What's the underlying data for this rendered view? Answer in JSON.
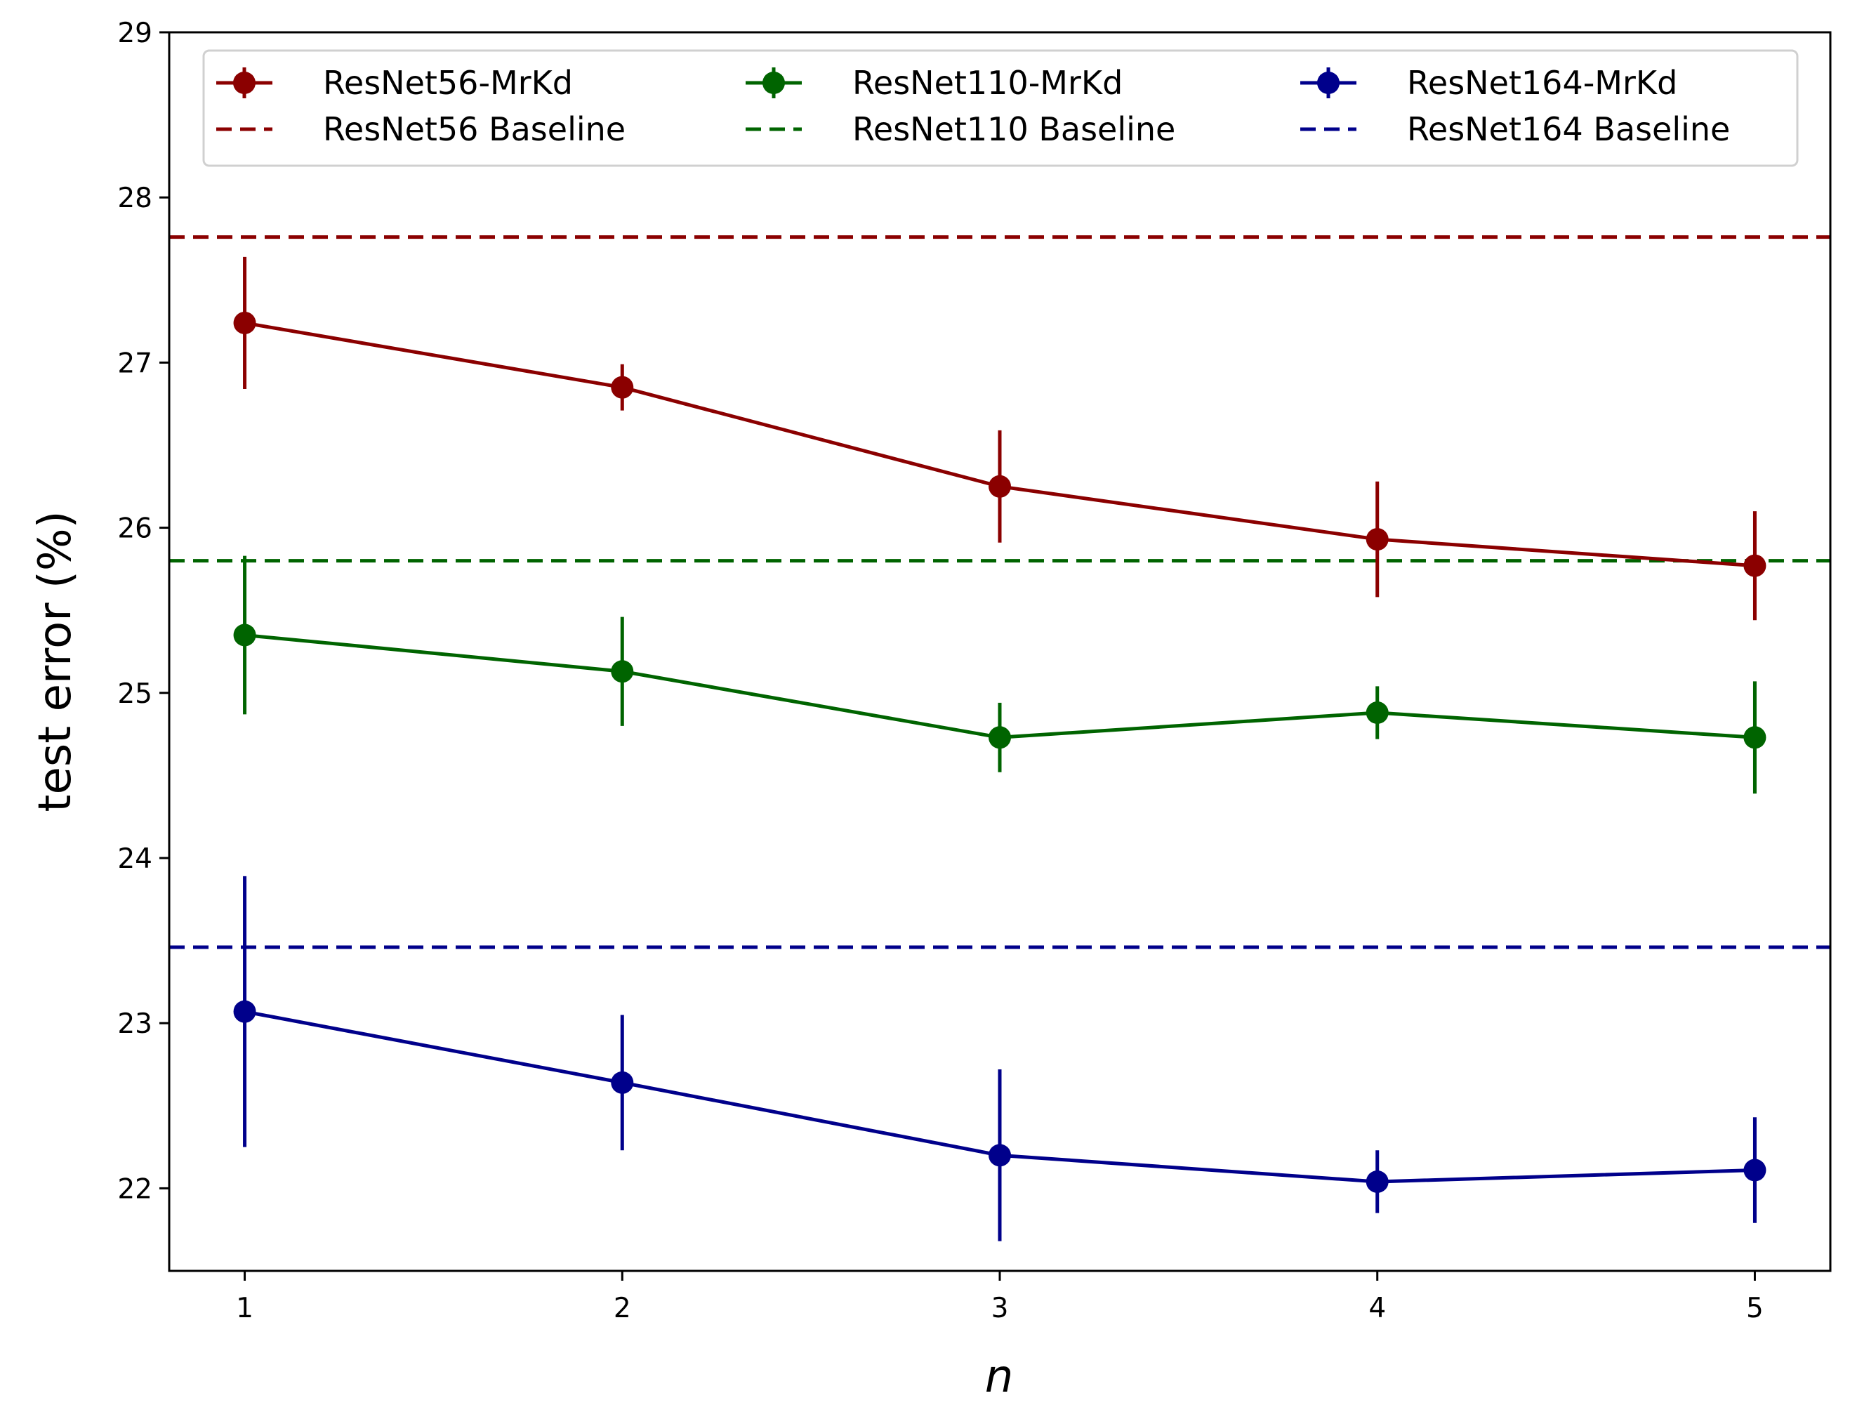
{
  "chart_data": {
    "type": "line",
    "title": "",
    "xlabel": "n",
    "ylabel": "test error (%)",
    "x": [
      1,
      2,
      3,
      4,
      5
    ],
    "xlim": [
      0.8,
      5.2
    ],
    "ylim": [
      21.5,
      29.0
    ],
    "xticks": [
      "1",
      "2",
      "3",
      "4",
      "5"
    ],
    "yticks": [
      "22",
      "23",
      "24",
      "25",
      "26",
      "27",
      "28",
      "29"
    ],
    "grid": false,
    "legend_position": "top",
    "series": [
      {
        "name": "ResNet56-MrKd",
        "color": "#8b0000",
        "values": [
          27.24,
          26.85,
          26.25,
          25.93,
          25.77
        ],
        "errors": [
          0.4,
          0.14,
          0.34,
          0.35,
          0.33
        ]
      },
      {
        "name": "ResNet110-MrKd",
        "color": "#006400",
        "values": [
          25.35,
          25.13,
          24.73,
          24.88,
          24.73
        ],
        "errors": [
          0.48,
          0.33,
          0.21,
          0.16,
          0.34
        ]
      },
      {
        "name": "ResNet164-MrKd",
        "color": "#00008b",
        "values": [
          23.07,
          22.64,
          22.2,
          22.04,
          22.11
        ],
        "errors": [
          0.82,
          0.41,
          0.52,
          0.19,
          0.32
        ]
      }
    ],
    "baselines": [
      {
        "name": "ResNet56 Baseline",
        "color": "#8b0000",
        "value": 27.76
      },
      {
        "name": "ResNet110 Baseline",
        "color": "#006400",
        "value": 25.8
      },
      {
        "name": "ResNet164 Baseline",
        "color": "#00008b",
        "value": 23.46
      }
    ]
  }
}
